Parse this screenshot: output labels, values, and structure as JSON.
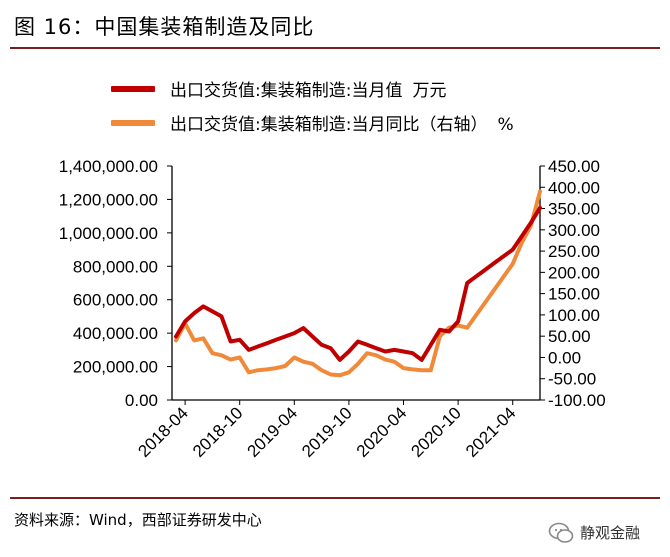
{
  "figure": {
    "title": "图 16：中国集装箱制造及同比",
    "source": "资料来源：Wind，西部证券研发中心",
    "watermark": "静观金融"
  },
  "colors": {
    "rule": "#7a1f1f",
    "series_value": "#c00000",
    "series_yoy": "#f08a3a",
    "axis": "#000000"
  },
  "chart_data": {
    "type": "line",
    "x_labels": [
      "2018-04",
      "2018-10",
      "2019-04",
      "2019-10",
      "2020-04",
      "2020-10",
      "2021-04"
    ],
    "x": [
      "2018-03",
      "2018-04",
      "2018-05",
      "2018-06",
      "2018-07",
      "2018-08",
      "2018-09",
      "2018-10",
      "2018-11",
      "2018-12",
      "2019-01",
      "2019-02",
      "2019-03",
      "2019-04",
      "2019-05",
      "2019-06",
      "2019-07",
      "2019-08",
      "2019-09",
      "2019-10",
      "2019-11",
      "2019-12",
      "2020-01",
      "2020-02",
      "2020-03",
      "2020-04",
      "2020-05",
      "2020-06",
      "2020-07",
      "2020-08",
      "2020-09",
      "2020-10",
      "2020-11",
      "2020-12",
      "2021-01",
      "2021-02",
      "2021-03",
      "2021-04",
      "2021-05",
      "2021-06",
      "2021-07"
    ],
    "series": [
      {
        "name": "出口交货值:集装箱制造:当月值",
        "unit": "万元",
        "axis": "left",
        "values": [
          380000,
          470000,
          520000,
          560000,
          530000,
          500000,
          350000,
          360000,
          300000,
          320000,
          340000,
          360000,
          380000,
          400000,
          430000,
          380000,
          330000,
          310000,
          240000,
          290000,
          350000,
          330000,
          310000,
          290000,
          300000,
          290000,
          280000,
          240000,
          330000,
          420000,
          410000,
          470000,
          700000,
          740000,
          780000,
          820000,
          860000,
          900000,
          980000,
          1060000,
          1150000
        ]
      },
      {
        "name": "出口交货值:集装箱制造:当月同比（右轴）",
        "unit": "%",
        "axis": "right",
        "values": [
          40,
          80,
          40,
          45,
          10,
          5,
          -5,
          0,
          -35,
          -30,
          -28,
          -25,
          -20,
          0,
          -10,
          -15,
          -30,
          -40,
          -42,
          -35,
          -15,
          10,
          5,
          -5,
          -10,
          -25,
          -28,
          -30,
          -30,
          50,
          70,
          75,
          70,
          100,
          130,
          160,
          190,
          220,
          270,
          310,
          390
        ]
      }
    ],
    "y_left": {
      "min": 0,
      "max": 1400000,
      "ticks": [
        "0.00",
        "200,000.00",
        "400,000.00",
        "600,000.00",
        "800,000.00",
        "1,000,000.00",
        "1,200,000.00",
        "1,400,000.00"
      ]
    },
    "y_right": {
      "min": -100,
      "max": 450,
      "ticks": [
        "-100.00",
        "-50.00",
        "0.00",
        "50.00",
        "100.00",
        "150.00",
        "200.00",
        "250.00",
        "300.00",
        "350.00",
        "400.00",
        "450.00"
      ]
    },
    "grid": false,
    "legend_position": "top"
  }
}
